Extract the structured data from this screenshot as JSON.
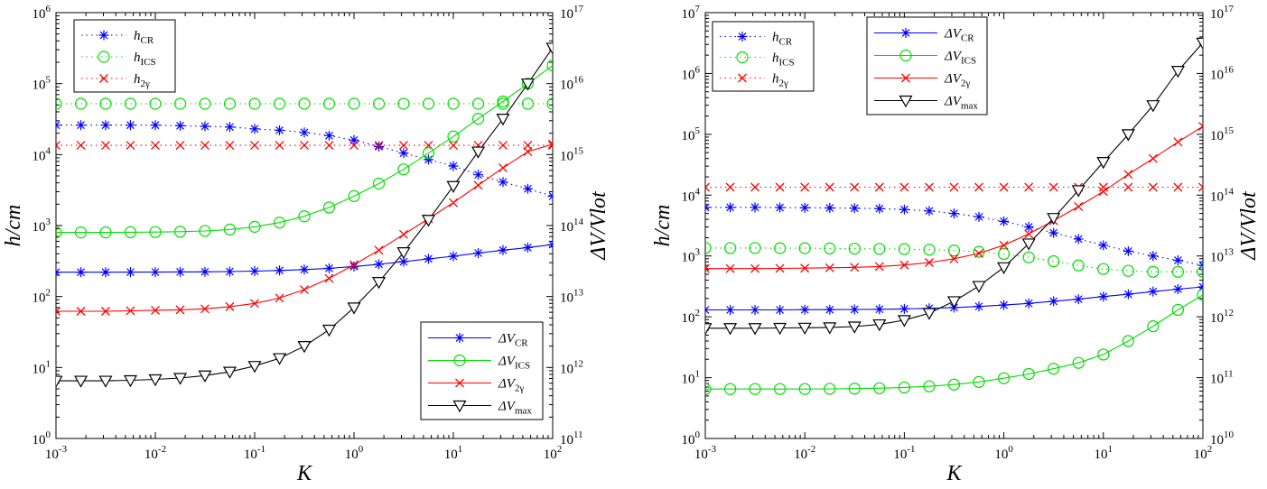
{
  "panels": [
    {
      "chart_data": {
        "type": "line",
        "xlabel": "K",
        "ylabel_left": "h/cm",
        "ylabel_right": "ΔV/Vlot",
        "x_scale": "log",
        "y_scale": "log",
        "xlim": [
          0.001,
          100
        ],
        "ylim_left": [
          1,
          1000000
        ],
        "ylim_right": [
          100000000000.0,
          1e+17
        ],
        "x_ticks": [
          {
            "mant": "10",
            "exp": "-3"
          },
          {
            "mant": "10",
            "exp": "-2"
          },
          {
            "mant": "10",
            "exp": "-1"
          },
          {
            "mant": "10",
            "exp": "0"
          },
          {
            "mant": "10",
            "exp": "1"
          },
          {
            "mant": "10",
            "exp": "2"
          }
        ],
        "y_ticks_left": [
          {
            "mant": "10",
            "exp": "0"
          },
          {
            "mant": "10",
            "exp": "1"
          },
          {
            "mant": "10",
            "exp": "2"
          },
          {
            "mant": "10",
            "exp": "3"
          },
          {
            "mant": "10",
            "exp": "4"
          },
          {
            "mant": "10",
            "exp": "5"
          },
          {
            "mant": "10",
            "exp": "6"
          }
        ],
        "y_ticks_right": [
          {
            "mant": "10",
            "exp": "11"
          },
          {
            "mant": "10",
            "exp": "12"
          },
          {
            "mant": "10",
            "exp": "13"
          },
          {
            "mant": "10",
            "exp": "14"
          },
          {
            "mant": "10",
            "exp": "15"
          },
          {
            "mant": "10",
            "exp": "16"
          },
          {
            "mant": "10",
            "exp": "17"
          }
        ],
        "x": [
          0.001,
          0.00178,
          0.00316,
          0.00562,
          0.01,
          0.0178,
          0.0316,
          0.0562,
          0.1,
          0.178,
          0.316,
          0.562,
          1,
          1.78,
          3.16,
          5.62,
          10,
          17.8,
          31.6,
          56.2,
          100
        ],
        "legend_h": {
          "position": "top-left",
          "entries": [
            {
              "series": "h_CR",
              "label": "h",
              "sub": "CR"
            },
            {
              "series": "h_ICS",
              "label": "h",
              "sub": "ICS"
            },
            {
              "series": "h_2g",
              "label": "h",
              "sub": "2γ"
            }
          ]
        },
        "legend_dv": {
          "position": "bottom-right",
          "entries": [
            {
              "series": "dV_CR",
              "label": "ΔV",
              "sub": "CR"
            },
            {
              "series": "dV_ICS",
              "label": "ΔV",
              "sub": "ICS"
            },
            {
              "series": "dV_2g",
              "label": "ΔV",
              "sub": "2γ"
            },
            {
              "series": "dV_max",
              "label": "ΔV",
              "sub": "max"
            }
          ]
        },
        "series": [
          {
            "id": "h_CR",
            "axis": "left",
            "color": "#0000ff",
            "style": "dotted",
            "marker": "star",
            "values": [
              26000,
              26000,
              26000,
              26000,
              26000,
              25500,
              25000,
              24500,
              23000,
              22000,
              20500,
              18500,
              16000,
              13000,
              10500,
              8500,
              6900,
              5200,
              4100,
              3300,
              2600
            ]
          },
          {
            "id": "h_ICS",
            "axis": "left",
            "color": "#00dd00",
            "style": "dotted",
            "marker": "circle",
            "values": [
              52000,
              52000,
              52000,
              52000,
              52000,
              52000,
              52000,
              52000,
              52000,
              52000,
              52000,
              52000,
              52000,
              52000,
              52000,
              52000,
              52000,
              52000,
              52000,
              52000,
              52000
            ]
          },
          {
            "id": "h_2g",
            "axis": "left",
            "color": "#ff0000",
            "style": "dotted",
            "marker": "x",
            "values": [
              13500,
              13500,
              13500,
              13500,
              13500,
              13500,
              13500,
              13500,
              13500,
              13500,
              13500,
              13500,
              13500,
              13500,
              13500,
              13500,
              13500,
              13500,
              13500,
              13500,
              13500
            ]
          },
          {
            "id": "dV_CR",
            "axis": "left",
            "color": "#0000ff",
            "style": "solid",
            "marker": "star",
            "values": [
              220,
              220,
              220,
              221,
              221,
              222,
              223,
              225,
              228,
              233,
              240,
              250,
              265,
              285,
              310,
              340,
              370,
              410,
              450,
              490,
              540
            ]
          },
          {
            "id": "dV_ICS",
            "axis": "left",
            "color": "#00dd00",
            "style": "solid",
            "marker": "circle",
            "values": [
              800,
              800,
              800,
              805,
              810,
              820,
              840,
              880,
              960,
              1100,
              1350,
              1800,
              2600,
              3900,
              6200,
              10500,
              18000,
              32000,
              56000,
              100000,
              180000
            ]
          },
          {
            "id": "dV_2g",
            "axis": "left",
            "color": "#ff0000",
            "style": "solid",
            "marker": "x",
            "values": [
              62,
              62,
              62,
              63,
              64,
              65,
              67,
              72,
              80,
              95,
              125,
              180,
              280,
              450,
              750,
              1250,
              2100,
              3700,
              6500,
              11000,
              14000
            ]
          },
          {
            "id": "dV_max",
            "axis": "left",
            "color": "#000000",
            "style": "solid",
            "marker": "triangle",
            "values": [
              6.5,
              6.5,
              6.5,
              6.6,
              6.8,
              7.1,
              7.7,
              8.7,
              10.5,
              13.5,
              20,
              34,
              70,
              160,
              420,
              1200,
              3600,
              11000,
              32000,
              100000,
              320000
            ]
          }
        ]
      }
    },
    {
      "chart_data": {
        "type": "line",
        "xlabel": "K",
        "ylabel_left": "h/cm",
        "ylabel_right": "ΔV/Vlot",
        "x_scale": "log",
        "y_scale": "log",
        "xlim": [
          0.001,
          100
        ],
        "ylim_left": [
          1,
          10000000
        ],
        "ylim_right": [
          10000000000.0,
          1e+17
        ],
        "x_ticks": [
          {
            "mant": "10",
            "exp": "-3"
          },
          {
            "mant": "10",
            "exp": "-2"
          },
          {
            "mant": "10",
            "exp": "-1"
          },
          {
            "mant": "10",
            "exp": "0"
          },
          {
            "mant": "10",
            "exp": "1"
          },
          {
            "mant": "10",
            "exp": "2"
          }
        ],
        "y_ticks_left": [
          {
            "mant": "10",
            "exp": "0"
          },
          {
            "mant": "10",
            "exp": "1"
          },
          {
            "mant": "10",
            "exp": "2"
          },
          {
            "mant": "10",
            "exp": "3"
          },
          {
            "mant": "10",
            "exp": "4"
          },
          {
            "mant": "10",
            "exp": "5"
          },
          {
            "mant": "10",
            "exp": "6"
          },
          {
            "mant": "10",
            "exp": "7"
          }
        ],
        "y_ticks_right": [
          {
            "mant": "10",
            "exp": "10"
          },
          {
            "mant": "10",
            "exp": "11"
          },
          {
            "mant": "10",
            "exp": "12"
          },
          {
            "mant": "10",
            "exp": "13"
          },
          {
            "mant": "10",
            "exp": "14"
          },
          {
            "mant": "10",
            "exp": "15"
          },
          {
            "mant": "10",
            "exp": "16"
          },
          {
            "mant": "10",
            "exp": "17"
          }
        ],
        "x": [
          0.001,
          0.00178,
          0.00316,
          0.00562,
          0.01,
          0.0178,
          0.0316,
          0.0562,
          0.1,
          0.178,
          0.316,
          0.562,
          1,
          1.78,
          3.16,
          5.62,
          10,
          17.8,
          31.6,
          56.2,
          100
        ],
        "legend_h": {
          "position": "top-left",
          "entries": [
            {
              "series": "h_CR",
              "label": "h",
              "sub": "CR"
            },
            {
              "series": "h_ICS",
              "label": "h",
              "sub": "ICS"
            },
            {
              "series": "h_2g",
              "label": "h",
              "sub": "2γ"
            }
          ]
        },
        "legend_dv": {
          "position": "top-center",
          "entries": [
            {
              "series": "dV_CR",
              "label": "ΔV",
              "sub": "CR"
            },
            {
              "series": "dV_ICS",
              "label": "ΔV",
              "sub": "ICS"
            },
            {
              "series": "dV_2g",
              "label": "ΔV",
              "sub": "2γ"
            },
            {
              "series": "dV_max",
              "label": "ΔV",
              "sub": "max"
            }
          ]
        },
        "series": [
          {
            "id": "h_CR",
            "axis": "left",
            "color": "#0000ff",
            "style": "dotted",
            "marker": "star",
            "values": [
              6300,
              6300,
              6300,
              6250,
              6200,
              6150,
              6100,
              6000,
              5800,
              5500,
              5000,
              4400,
              3700,
              3000,
              2400,
              1900,
              1500,
              1200,
              1000,
              850,
              700
            ]
          },
          {
            "id": "h_ICS",
            "axis": "left",
            "color": "#00dd00",
            "style": "dotted",
            "marker": "circle",
            "values": [
              1350,
              1350,
              1350,
              1340,
              1340,
              1330,
              1320,
              1310,
              1300,
              1270,
              1230,
              1170,
              1080,
              950,
              820,
              700,
              610,
              570,
              550,
              550,
              550
            ]
          },
          {
            "id": "h_2g",
            "axis": "left",
            "color": "#ff0000",
            "style": "dotted",
            "marker": "x",
            "values": [
              13500,
              13500,
              13500,
              13500,
              13500,
              13500,
              13500,
              13500,
              13500,
              13500,
              13500,
              13500,
              13500,
              13500,
              13500,
              13500,
              13500,
              13500,
              13500,
              13500,
              13500
            ]
          },
          {
            "id": "dV_CR",
            "axis": "left",
            "color": "#0000ff",
            "style": "solid",
            "marker": "star",
            "values": [
              130,
              130,
              130,
              130,
              131,
              131,
              132,
              133,
              135,
              138,
              142,
              148,
              156,
              166,
              180,
              195,
              215,
              235,
              260,
              285,
              310
            ]
          },
          {
            "id": "dV_ICS",
            "axis": "left",
            "color": "#00dd00",
            "style": "solid",
            "marker": "circle",
            "values": [
              6.5,
              6.5,
              6.5,
              6.5,
              6.5,
              6.55,
              6.6,
              6.7,
              6.9,
              7.2,
              7.7,
              8.5,
              9.8,
              11.5,
              14,
              17.5,
              24,
              40,
              70,
              130,
              230
            ]
          },
          {
            "id": "dV_2g",
            "axis": "left",
            "color": "#ff0000",
            "style": "solid",
            "marker": "x",
            "values": [
              620,
              620,
              620,
              625,
              630,
              640,
              650,
              670,
              710,
              780,
              900,
              1100,
              1500,
              2300,
              3800,
              6500,
              11500,
              22000,
              40000,
              75000,
              135000
            ]
          },
          {
            "id": "dV_max",
            "axis": "left",
            "color": "#000000",
            "style": "solid",
            "marker": "triangle",
            "values": [
              65,
              65,
              65,
              65.5,
              66,
              67,
              69,
              75,
              88,
              115,
              180,
              320,
              650,
              1600,
              4200,
              12000,
              35000,
              100000,
              300000,
              1100000,
              3200000
            ]
          }
        ]
      }
    }
  ]
}
